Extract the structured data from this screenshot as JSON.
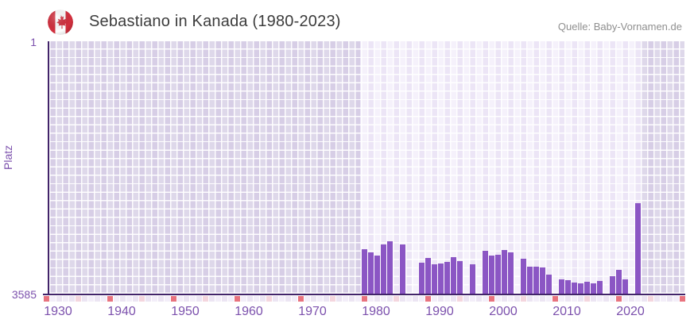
{
  "header": {
    "title": "Sebastiano in Kanada (1980-2023)",
    "source": "Quelle: Baby-Vornamen.de",
    "flag": "canada-flag-icon"
  },
  "y_axis": {
    "label": "Platz",
    "top_tick": "1",
    "bottom_tick": "3585"
  },
  "x_axis": {
    "ticks": [
      "1930",
      "1940",
      "1950",
      "1960",
      "1970",
      "1980",
      "1990",
      "2000",
      "2010",
      "2020"
    ]
  },
  "colors": {
    "bar": "#8b56c4",
    "axis_line": "#42246a",
    "tick_label": "#7c51ad",
    "title_text": "#3c3c3c",
    "source_text": "#8f8f8f",
    "plot_bg_light": "#f5f1fb",
    "plot_bg_alt": "#ece5f6",
    "plot_bg_dim": "#e3dcee",
    "strip_base": "#ece5f3",
    "strip_base_alt": "#f3eef9",
    "strip_decade": "#e8737e",
    "strip_half_decade": "#f4d6de",
    "flag_red": "#d32f3e"
  },
  "chart_data": {
    "type": "bar",
    "title": "Sebastiano in Kanada (1980-2023)",
    "xlabel": "",
    "ylabel": "Platz",
    "y_axis_inverted": true,
    "ylim": [
      1,
      3585
    ],
    "x_visible_range": [
      1929,
      2028
    ],
    "highlight_range": [
      1978,
      2022
    ],
    "legend": "none",
    "grid": true,
    "series_name": "Platz (rank of name Sebastiano in Canada)",
    "years": [
      1980,
      1981,
      1982,
      1983,
      1984,
      1985,
      1986,
      1987,
      1988,
      1989,
      1990,
      1991,
      1992,
      1993,
      1994,
      1995,
      1996,
      1997,
      1998,
      1999,
      2000,
      2001,
      2002,
      2003,
      2004,
      2005,
      2006,
      2007,
      2008,
      2009,
      2010,
      2011,
      2012,
      2013,
      2014,
      2015,
      2016,
      2017,
      2018,
      2019,
      2020,
      2021,
      2022,
      2023
    ],
    "ranks": [
      2950,
      3000,
      3045,
      2885,
      2840,
      null,
      2885,
      null,
      null,
      3145,
      3080,
      3165,
      3160,
      3135,
      3070,
      3125,
      null,
      3170,
      null,
      2975,
      3045,
      3035,
      2965,
      3000,
      null,
      3090,
      3205,
      3205,
      3215,
      3320,
      null,
      3385,
      3395,
      3430,
      3440,
      3415,
      3435,
      3410,
      null,
      3340,
      3245,
      3385,
      null,
      2295
    ],
    "decade_marker_years": [
      1930,
      1940,
      1950,
      1960,
      1970,
      1980,
      1990,
      2000,
      2010,
      2020,
      2030
    ],
    "half_decade_marker_years": [
      1935,
      1945,
      1955,
      1965,
      1975,
      1985,
      1995,
      2005,
      2015,
      2025
    ]
  }
}
